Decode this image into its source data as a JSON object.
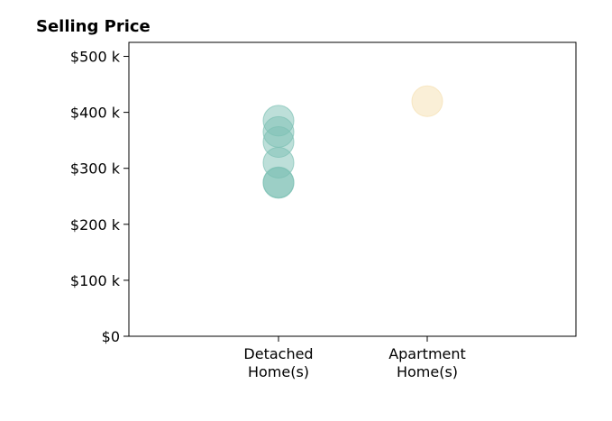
{
  "chart_data": {
    "type": "scatter",
    "title": "Selling Price",
    "categories": [
      "Detached Home(s)",
      "Apartment Home(s)"
    ],
    "category_label_lines": [
      [
        "Detached",
        "Home(s)"
      ],
      [
        "Apartment",
        "Home(s)"
      ]
    ],
    "xlabel": "",
    "ylabel": "",
    "ylim": [
      0,
      525000
    ],
    "y_ticks": [
      0,
      100000,
      200000,
      300000,
      400000,
      500000
    ],
    "y_tick_labels": [
      "$0",
      "$100 k",
      "$200 k",
      "$300 k",
      "$400 k",
      "$500 k"
    ],
    "grid": false,
    "legend": "none",
    "series": [
      {
        "color": "#7cc0b4",
        "points": [
          {
            "x": "Detached Home(s)",
            "y": 385000
          },
          {
            "x": "Detached Home(s)",
            "y": 365000
          },
          {
            "x": "Detached Home(s)",
            "y": 347000
          },
          {
            "x": "Detached Home(s)",
            "y": 310000
          },
          {
            "x": "Detached Home(s)",
            "y": 275000
          },
          {
            "x": "Detached Home(s)",
            "y": 274000
          }
        ]
      },
      {
        "color": "#f5dfb0",
        "points": [
          {
            "x": "Apartment Home(s)",
            "y": 420000
          }
        ]
      }
    ]
  }
}
